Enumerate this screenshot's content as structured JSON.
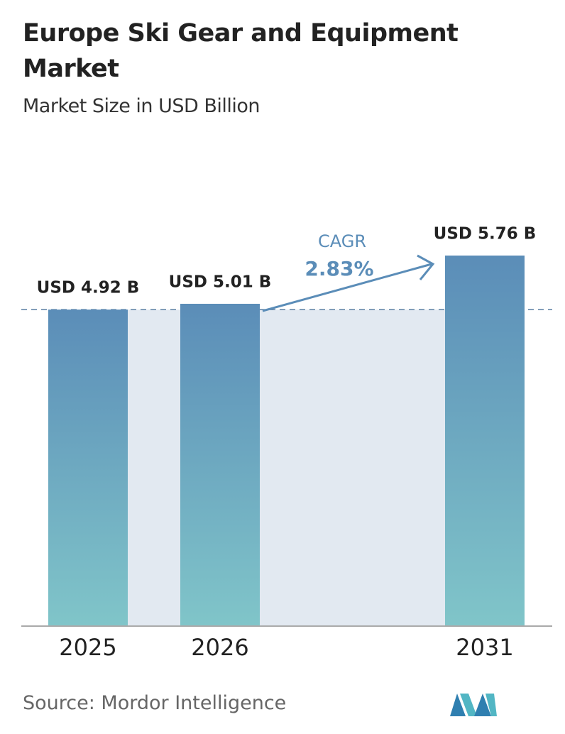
{
  "chart_data": {
    "type": "bar",
    "title": "Europe Ski Gear and Equipment Market",
    "subtitle": "Market Size in USD Billion",
    "categories": [
      "2025",
      "2026",
      "2031"
    ],
    "values": [
      4.92,
      5.01,
      5.76
    ],
    "value_labels": [
      "USD 4.92 B",
      "USD 5.01 B",
      "USD 5.76 B"
    ],
    "color": [
      "#5b8db8",
      "#80c5c9"
    ],
    "annotations": {
      "cagr_label": "CAGR",
      "cagr_value": "2.83%"
    },
    "source": "Source: Mordor Intelligence"
  }
}
